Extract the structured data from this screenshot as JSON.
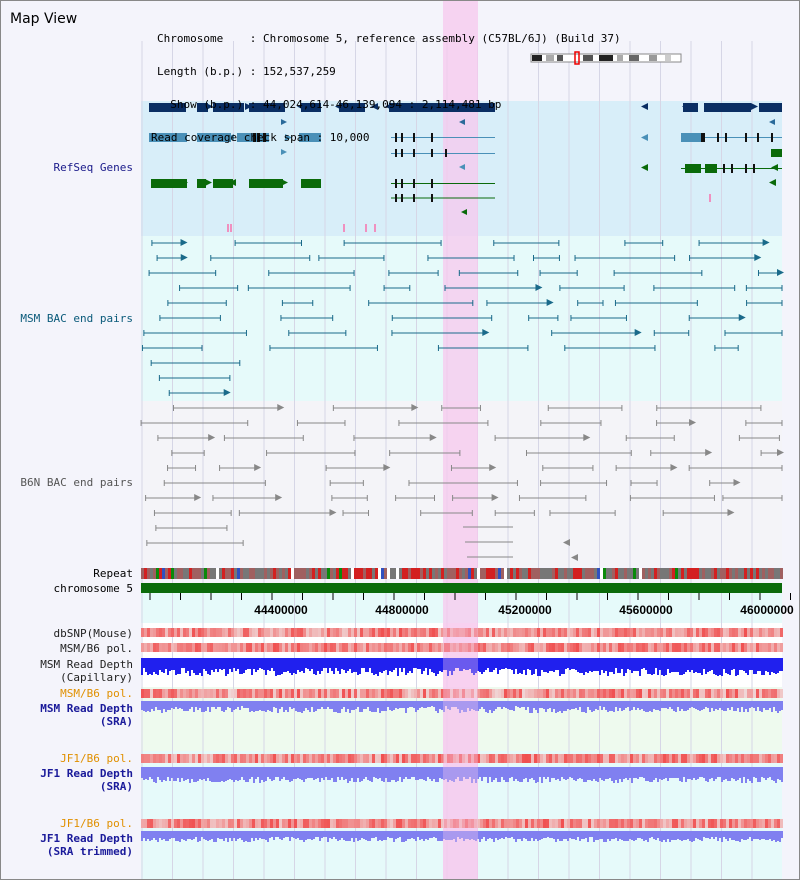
{
  "view_title": "Map View",
  "info": {
    "chromosome": "Chromosome    : Chromosome 5, reference assembly (C57BL/6J) (Build 37)",
    "length": "Length (b.p.) : 152,537,259",
    "show": "  Show (b.p.) : 44,024,614-46,139,094 : 2,114,481 bp",
    "coverage": "Read coverage check span : 10,000"
  },
  "tracks": {
    "refseq": "RefSeq Genes",
    "msm_bac": "MSM BAC end pairs",
    "b6n_bac": "B6N BAC end pairs",
    "repeat": "Repeat",
    "chromosome": "chromosome 5",
    "dbsnp": "dbSNP(Mouse)",
    "msm_b6_pol_1": "MSM/B6 pol.",
    "msm_read_depth_cap": "MSM Read Depth\n(Capillary)",
    "msm_b6_pol_2": "MSM/B6 pol.",
    "msm_read_depth_sra": "MSM Read Depth\n(SRA)",
    "jf1_b6_pol_1": "JF1/B6 pol.",
    "jf1_read_depth_sra": "JF1 Read Depth\n(SRA)",
    "jf1_b6_pol_2": "JF1/B6 pol.",
    "jf1_read_depth_trim": "JF1 Read Depth\n(SRA trimmed)"
  },
  "axis_ticks": [
    "44400000",
    "44800000",
    "45200000",
    "45600000",
    "46000000"
  ],
  "colors": {
    "refseq_bg": "#d8eef9",
    "msm_bg": "#e6fafa",
    "b6n_bg": "#f4f4f8",
    "highlight": "#f7c8ee",
    "refseq_dark": "#0a2e63",
    "refseq_mid": "#4a90b8",
    "refseq_green": "#0a6a0a",
    "msm_feature": "#1a6a8a",
    "b6n_feature": "#888888",
    "chromosome_bar": "#0b6b0b",
    "pol_red": "#f05050",
    "depth_blue": "#2020ee",
    "depth_lightblue": "#8080f0",
    "label_navy": "#1a1a8a",
    "label_orange": "#e09000"
  }
}
